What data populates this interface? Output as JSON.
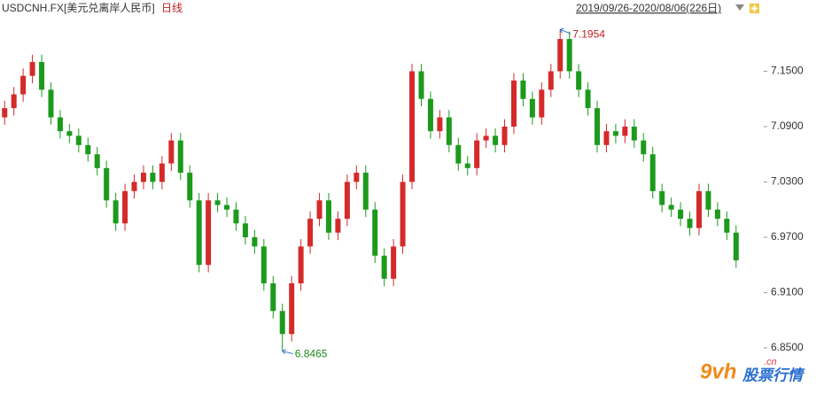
{
  "chart_data": {
    "type": "candlestick",
    "symbol": "USDCNH.FX",
    "name": "[美元兑离岸人民币]",
    "period": "日线",
    "range": "2019/09/26-2020/08/06(226日)",
    "up_color": "#d42a2a",
    "down_color": "#1c9a1c",
    "ylim": [
      6.8,
      7.21
    ],
    "yticks": [
      {
        "value": 6.85,
        "label": "6.8500"
      },
      {
        "value": 6.91,
        "label": "6.9100"
      },
      {
        "value": 6.97,
        "label": "6.9700"
      },
      {
        "value": 7.03,
        "label": "7.0300"
      },
      {
        "value": 7.09,
        "label": "7.0900"
      },
      {
        "value": 7.15,
        "label": "7.1500"
      }
    ],
    "grid": false,
    "open": [
      7.1,
      7.11,
      7.125,
      7.145,
      7.16,
      7.13,
      7.1,
      7.085,
      7.08,
      7.07,
      7.06,
      7.045,
      7.01,
      6.985,
      7.02,
      7.03,
      7.04,
      7.03,
      7.05,
      7.075,
      7.04,
      7.01,
      6.94,
      7.01,
      7.005,
      7.0,
      6.985,
      6.97,
      6.96,
      6.92,
      6.89,
      6.865,
      6.92,
      6.96,
      6.99,
      7.01,
      6.975,
      6.99,
      7.03,
      7.04,
      7.0,
      6.95,
      6.925,
      6.96,
      7.03,
      7.15,
      7.12,
      7.085,
      7.1,
      7.07,
      7.05,
      7.045,
      7.075,
      7.08,
      7.07,
      7.09,
      7.14,
      7.12,
      7.1,
      7.13,
      7.15,
      7.185,
      7.15,
      7.13,
      7.11,
      7.07,
      7.085,
      7.08,
      7.09,
      7.075,
      7.06,
      7.02,
      7.005,
      7.0,
      6.99,
      6.98,
      7.02,
      7.0,
      6.99,
      6.975
    ],
    "high": [
      7.118,
      7.133,
      7.153,
      7.168,
      7.168,
      7.138,
      7.108,
      7.093,
      7.088,
      7.078,
      7.068,
      7.053,
      7.018,
      7.028,
      7.038,
      7.048,
      7.048,
      7.058,
      7.083,
      7.083,
      7.048,
      7.018,
      7.018,
      7.018,
      7.013,
      7.008,
      6.993,
      6.978,
      6.968,
      6.928,
      6.898,
      6.928,
      6.968,
      6.998,
      7.018,
      7.018,
      6.998,
      7.038,
      7.048,
      7.048,
      7.008,
      6.958,
      6.968,
      7.038,
      7.158,
      7.158,
      7.128,
      7.108,
      7.108,
      7.078,
      7.058,
      7.083,
      7.088,
      7.088,
      7.098,
      7.148,
      7.148,
      7.128,
      7.138,
      7.158,
      7.1954,
      7.193,
      7.158,
      7.138,
      7.118,
      7.093,
      7.093,
      7.098,
      7.098,
      7.083,
      7.068,
      7.028,
      7.013,
      7.008,
      6.998,
      7.028,
      7.028,
      7.008,
      6.998,
      6.983
    ],
    "low": [
      7.092,
      7.102,
      7.117,
      7.137,
      7.122,
      7.092,
      7.077,
      7.072,
      7.062,
      7.052,
      7.037,
      7.002,
      6.977,
      6.977,
      7.012,
      7.022,
      7.022,
      7.022,
      7.042,
      7.032,
      7.002,
      6.932,
      6.932,
      6.997,
      6.992,
      6.977,
      6.962,
      6.952,
      6.912,
      6.882,
      6.8465,
      6.857,
      6.912,
      6.952,
      6.982,
      6.967,
      6.967,
      6.982,
      7.022,
      6.992,
      6.942,
      6.917,
      6.917,
      6.952,
      7.022,
      7.112,
      7.077,
      7.077,
      7.062,
      7.042,
      7.037,
      7.037,
      7.067,
      7.062,
      7.062,
      7.082,
      7.112,
      7.092,
      7.092,
      7.122,
      7.142,
      7.142,
      7.122,
      7.102,
      7.062,
      7.062,
      7.072,
      7.072,
      7.067,
      7.052,
      7.012,
      6.997,
      6.992,
      6.982,
      6.972,
      6.972,
      6.992,
      6.982,
      6.967,
      6.937
    ],
    "close": [
      7.11,
      7.125,
      7.145,
      7.16,
      7.13,
      7.1,
      7.085,
      7.08,
      7.07,
      7.06,
      7.045,
      7.01,
      6.985,
      7.02,
      7.03,
      7.04,
      7.03,
      7.05,
      7.075,
      7.04,
      7.01,
      6.94,
      7.01,
      7.005,
      7.0,
      6.985,
      6.97,
      6.96,
      6.92,
      6.89,
      6.865,
      6.92,
      6.96,
      6.99,
      7.01,
      6.975,
      6.99,
      7.03,
      7.04,
      7.0,
      6.95,
      6.925,
      6.96,
      7.03,
      7.15,
      7.12,
      7.085,
      7.1,
      7.07,
      7.05,
      7.045,
      7.075,
      7.08,
      7.07,
      7.09,
      7.14,
      7.12,
      7.1,
      7.13,
      7.15,
      7.185,
      7.15,
      7.13,
      7.11,
      7.07,
      7.085,
      7.08,
      7.09,
      7.075,
      7.06,
      7.02,
      7.005,
      7.0,
      6.99,
      6.98,
      7.02,
      7.0,
      6.99,
      6.975,
      6.945
    ],
    "max_label": "7.1954",
    "min_label": "6.8465",
    "watermark": {
      "logo": "9vh",
      "text": "股票行情",
      "domain": ".cn"
    }
  }
}
